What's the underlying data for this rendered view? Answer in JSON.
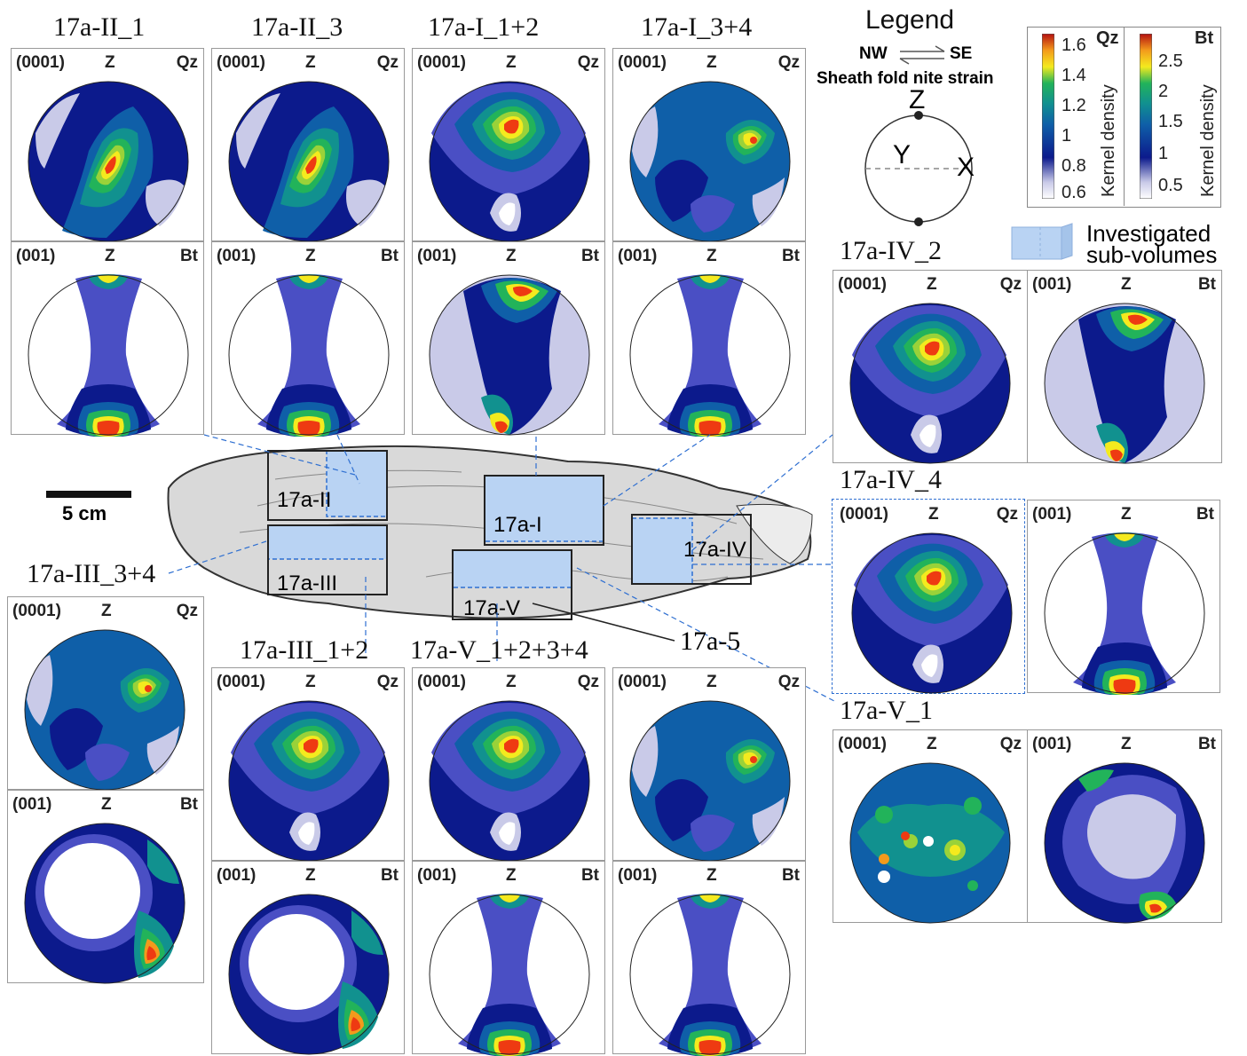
{
  "legend": {
    "title": "Legend",
    "nw": "NW",
    "se": "SE",
    "sheath": "Sheath fold nite strain",
    "axis_z": "Z",
    "axis_y": "Y",
    "axis_x": "X",
    "investigated": "Investigated",
    "subvolumes": "sub-volumes"
  },
  "colorbars": [
    {
      "mineral": "Qz",
      "label": "Kernel density",
      "ticks": [
        "1.6",
        "1.4",
        "1.2",
        "1",
        "0.8",
        "0.6"
      ]
    },
    {
      "mineral": "Bt",
      "label": "Kernel density",
      "ticks": [
        "2.5",
        "2",
        "1.5",
        "1",
        "0.5"
      ]
    }
  ],
  "colors": {
    "level0": "#ffffff",
    "level1": "#c9cae8",
    "level2": "#4a4fc4",
    "level3": "#0c1a8c",
    "level4": "#0f5fa8",
    "level5": "#11918f",
    "level6": "#22b35a",
    "level7": "#9ad239",
    "level8": "#f4ea1e",
    "level9": "#f39a1c",
    "level10": "#ee3a12",
    "subvolume": "#b9d3f3",
    "rock": "#d9d9d9"
  },
  "labels": {
    "hdr_qz": "(0001)",
    "hdr_bt": "(001)",
    "z": "Z",
    "qz": "Qz",
    "bt": "Bt"
  },
  "scale": {
    "label": "5 cm"
  },
  "samples": {
    "s1": "17a-II_1",
    "s2": "17a-II_3",
    "s3": "17a-I_1+2",
    "s4": "17a-I_3+4",
    "s5": "17a-IV_2",
    "s6": "17a-IV_4",
    "s7": "17a-III_3+4",
    "s8": "17a-III_1+2",
    "s9": "17a-V_1+2+3+4",
    "s10": "17a-5",
    "s11": "17a-V_1"
  },
  "regions": {
    "r1": "17a-II",
    "r2": "17a-I",
    "r3": "17a-III",
    "r4": "17a-V",
    "r5": "17a-IV"
  }
}
